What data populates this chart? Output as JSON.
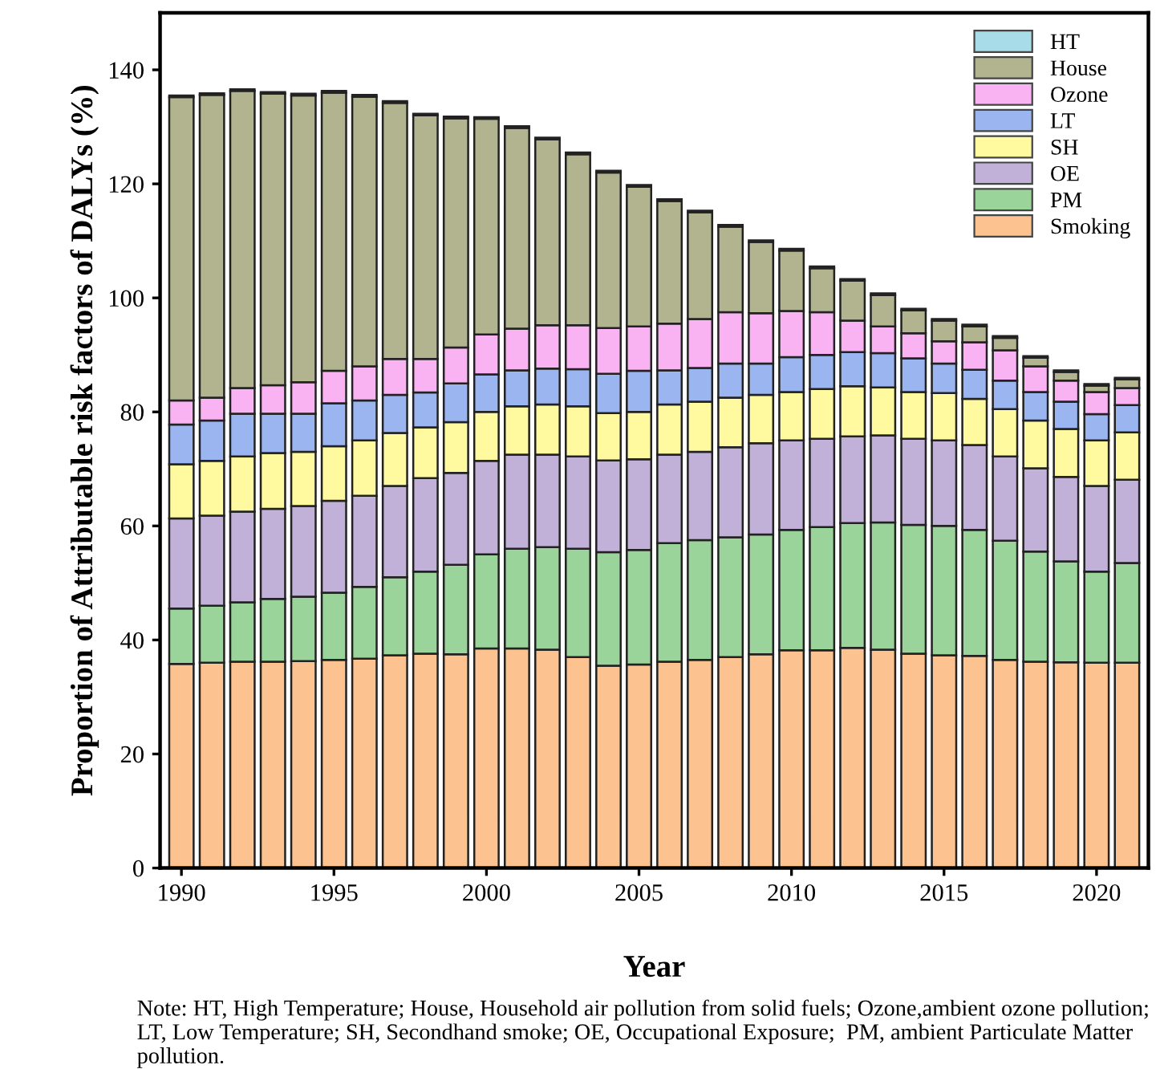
{
  "chart_data": {
    "type": "bar",
    "stacked": true,
    "xlabel": "Year",
    "ylabel": "Proportion of Attributable risk factors of DALYs (%)",
    "x": [
      1990,
      1991,
      1992,
      1993,
      1994,
      1995,
      1996,
      1997,
      1998,
      1999,
      2000,
      2001,
      2002,
      2003,
      2004,
      2005,
      2006,
      2007,
      2008,
      2009,
      2010,
      2011,
      2012,
      2013,
      2014,
      2015,
      2016,
      2017,
      2018,
      2019,
      2020,
      2021
    ],
    "xlim": [
      1989.3,
      2021.7
    ],
    "xticks": [
      1990,
      1995,
      2000,
      2005,
      2010,
      2015,
      2020
    ],
    "ylim": [
      0,
      150
    ],
    "yticks": [
      0,
      20,
      40,
      60,
      80,
      100,
      120,
      140
    ],
    "legend": "top right",
    "grid": false,
    "series": [
      {
        "name": "Smoking",
        "color": "#fcc290",
        "values": [
          35.8,
          36,
          36.2,
          36.2,
          36.3,
          36.5,
          36.7,
          37.3,
          37.6,
          37.5,
          38.5,
          38.5,
          38.3,
          37,
          35.5,
          35.7,
          36.2,
          36.5,
          37,
          37.5,
          38.2,
          38.2,
          38.6,
          38.3,
          37.6,
          37.3,
          37.2,
          36.5,
          36.2,
          36.1,
          36,
          36
        ]
      },
      {
        "name": "PM",
        "color": "#9bd49a",
        "values": [
          9.7,
          10,
          10.4,
          11,
          11.3,
          11.8,
          12.6,
          13.7,
          14.4,
          15.7,
          16.5,
          17.5,
          18,
          19,
          19.9,
          20.1,
          20.8,
          21,
          21,
          21,
          21.1,
          21.6,
          21.9,
          22.3,
          22.6,
          22.7,
          22.1,
          20.9,
          19.3,
          17.7,
          16,
          17.5
        ]
      },
      {
        "name": "OE",
        "color": "#c1b0d8",
        "values": [
          15.8,
          15.8,
          15.9,
          15.8,
          15.9,
          16.1,
          16,
          16,
          16.4,
          16.1,
          16.4,
          16.5,
          16.2,
          16.2,
          16.1,
          15.9,
          15.5,
          15.5,
          15.8,
          16,
          15.7,
          15.5,
          15.2,
          15.3,
          15.1,
          15,
          14.9,
          14.8,
          14.6,
          14.8,
          15,
          14.6
        ]
      },
      {
        "name": "SH",
        "color": "#fff9a0",
        "values": [
          9.5,
          9.6,
          9.7,
          9.8,
          9.5,
          9.6,
          9.7,
          9.3,
          8.9,
          8.9,
          8.6,
          8.5,
          8.8,
          8.8,
          8.3,
          8.3,
          8.8,
          8.8,
          8.7,
          8.5,
          8.5,
          8.7,
          8.8,
          8.4,
          8.2,
          8.3,
          8.1,
          8.3,
          8.4,
          8.4,
          8,
          8.3
        ]
      },
      {
        "name": "LT",
        "color": "#9ab5ef",
        "values": [
          7,
          7.1,
          7.5,
          6.9,
          6.7,
          7.5,
          7,
          6.7,
          6.1,
          6.8,
          6.6,
          6.3,
          6.3,
          6.5,
          6.9,
          7.2,
          6,
          5.9,
          6,
          5.5,
          6.1,
          6,
          6,
          6,
          5.9,
          5.2,
          5.1,
          5,
          5,
          4.8,
          4.6,
          4.8
        ]
      },
      {
        "name": "Ozone",
        "color": "#f9b3f2",
        "values": [
          4.2,
          4,
          4.5,
          5,
          5.5,
          5.7,
          6,
          6.3,
          5.9,
          6.3,
          7,
          7.3,
          7.6,
          7.7,
          8,
          7.8,
          8.2,
          8.6,
          9,
          8.8,
          8.1,
          7.5,
          5.5,
          4.7,
          4.4,
          3.9,
          4.8,
          5.3,
          4.5,
          3.7,
          3.9,
          3
        ]
      },
      {
        "name": "House",
        "color": "#b2b48f",
        "values": [
          53.2,
          53.1,
          52.1,
          51.1,
          50.3,
          48.8,
          47.3,
          44.9,
          42.7,
          40.2,
          37.8,
          35.2,
          32.6,
          30,
          27.3,
          24.5,
          21.5,
          18.7,
          15,
          12.5,
          10.6,
          7.7,
          7,
          5.5,
          4,
          3.6,
          2.8,
          2.2,
          1.5,
          1.5,
          1.1,
          1.5
        ]
      },
      {
        "name": "HT",
        "color": "#a8dce8",
        "values": [
          0.3,
          0.3,
          0.3,
          0.3,
          0.3,
          0.3,
          0.3,
          0.3,
          0.3,
          0.3,
          0.3,
          0.3,
          0.3,
          0.3,
          0.3,
          0.3,
          0.3,
          0.3,
          0.3,
          0.3,
          0.3,
          0.3,
          0.3,
          0.3,
          0.3,
          0.3,
          0.3,
          0.3,
          0.3,
          0.3,
          0.3,
          0.3
        ]
      }
    ],
    "annotations": [
      "Note: HT, High Temperature; House, Household air pollution from solid fuels; Ozone,ambient ozone pollution; LT, Low Temperature; SH, Secondhand smoke; OE, Occupational Exposure;  PM, ambient Particulate Matter pollution."
    ]
  }
}
